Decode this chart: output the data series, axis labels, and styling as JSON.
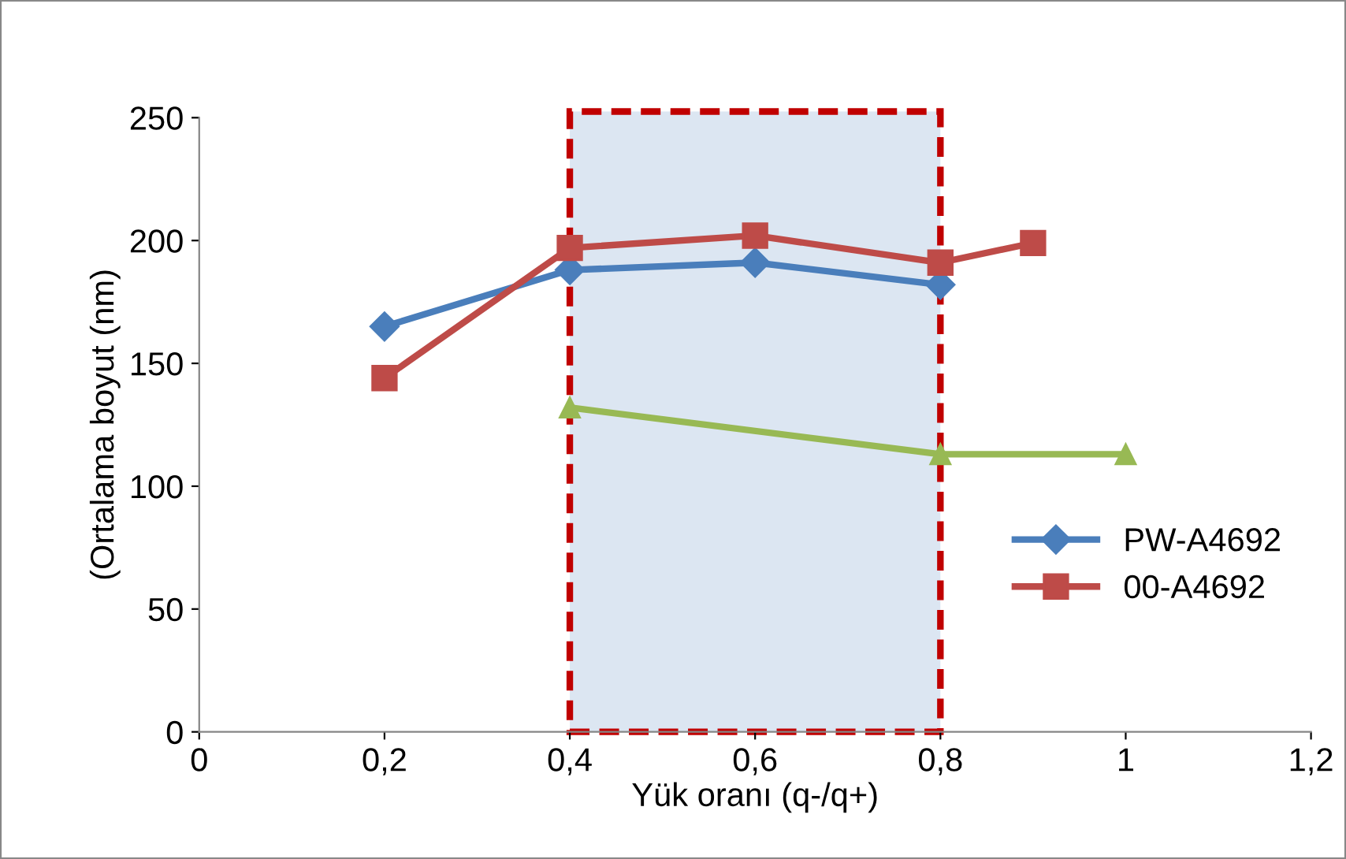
{
  "chart_data": {
    "type": "line",
    "xlabel": "Yük oranı (q-/q+)",
    "ylabel": "(Ortalama boyut (nm)",
    "series": [
      {
        "name": "PW-A4692",
        "color": "#4a7ebb",
        "marker": "diamond",
        "x": [
          0.2,
          0.4,
          0.6,
          0.8
        ],
        "values": [
          165,
          188,
          191,
          182
        ]
      },
      {
        "name": "00-A4692",
        "color": "#be4b48",
        "marker": "square",
        "x": [
          0.2,
          0.4,
          0.6,
          0.8,
          0.9
        ],
        "values": [
          144,
          197,
          202,
          191,
          199
        ]
      },
      {
        "color": "#98b954",
        "marker": "triangle",
        "x": [
          0.4,
          0.8,
          1.0
        ],
        "values": [
          132,
          113,
          113
        ]
      }
    ],
    "xlim": [
      0,
      1.2
    ],
    "ylim": [
      0,
      250
    ],
    "xticks": [
      0,
      {
        "value": 0.2,
        "label": "0,2"
      },
      {
        "value": 0.4,
        "label": "0,4"
      },
      {
        "value": 0.6,
        "label": "0,6"
      },
      {
        "value": 0.8,
        "label": "0,8"
      },
      1,
      {
        "value": 1.2,
        "label": "1,2"
      }
    ],
    "yticks": [
      0,
      50,
      100,
      150,
      200,
      250
    ],
    "bands": [
      {
        "axis": "x",
        "from": 0.4,
        "to": 0.8,
        "color": "#dce6f2"
      }
    ],
    "legend": "right",
    "grid": false
  }
}
